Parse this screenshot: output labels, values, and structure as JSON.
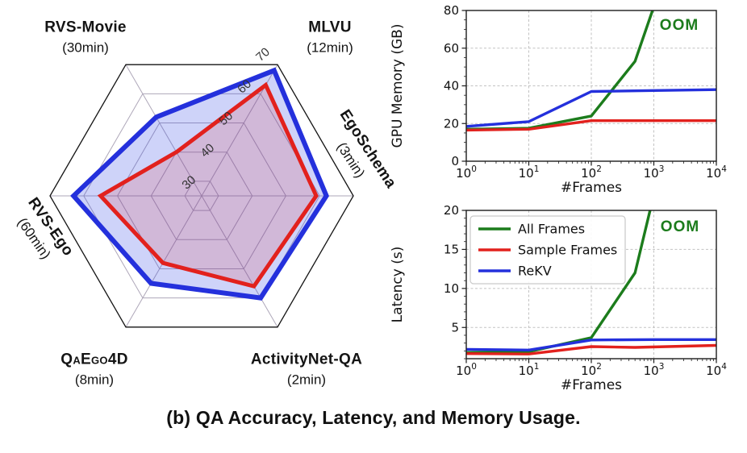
{
  "caption": "(b) QA Accuracy, Latency, and Memory Usage.",
  "colors": {
    "green": "#1c7c1c",
    "red": "#e2211d",
    "blue": "#2430dc",
    "blue_fill": "rgba(50,70,228,0.24)",
    "red_fill": "rgba(226,33,29,0.15)",
    "grid": "#c2c2c2",
    "spine": "#1c1c1c",
    "radar_grid": "#aea7b9",
    "radar_outline": "#141414"
  },
  "chart_data": [
    {
      "type": "radar",
      "categories": [
        "RVS-Movie",
        "MLVU",
        "EgoSchema",
        "ActivityNet-QA",
        "QaEgo4D",
        "RVS-Ego"
      ],
      "category_sublabels": [
        "(30min)",
        "(12min)",
        "(3min)",
        "(2min)",
        "(8min)",
        "(60min)"
      ],
      "axis_angles_deg": [
        120,
        60,
        0,
        -60,
        -120,
        180
      ],
      "rings": [
        30,
        40,
        50,
        60,
        70
      ],
      "scale_min": 25,
      "scale_max": 70,
      "series": [
        {
          "name": "ReKV",
          "color": "#2430dc",
          "fill": "rgba(50,70,228,0.24)",
          "values": [
            52,
            68,
            62,
            60,
            55,
            63
          ]
        },
        {
          "name": "Sample Frames",
          "color": "#e2211d",
          "fill": "rgba(226,33,29,0.15)",
          "values": [
            40,
            63,
            59,
            56,
            48,
            55
          ]
        }
      ]
    },
    {
      "type": "line",
      "xlabel": "#Frames",
      "ylabel": "GPU Memory (GB)",
      "xscale": "log",
      "xlim": [
        1,
        10000
      ],
      "ylim": [
        0,
        80
      ],
      "yticks": [
        0,
        20,
        40,
        60,
        80
      ],
      "xtick_labels": [
        "10^0",
        "10^1",
        "10^2",
        "10^3",
        "10^4"
      ],
      "annotation": {
        "text": "OOM",
        "color": "#1c7c1c"
      },
      "legend": false,
      "series": [
        {
          "name": "All Frames",
          "color": "#1c7c1c",
          "x": [
            1,
            10,
            100,
            500,
            1000
          ],
          "y": [
            17,
            17.5,
            24,
            53,
            82
          ]
        },
        {
          "name": "Sample Frames",
          "color": "#e2211d",
          "x": [
            1,
            10,
            100,
            1000,
            10000
          ],
          "y": [
            16.5,
            17,
            21.5,
            21.5,
            21.5
          ]
        },
        {
          "name": "ReKV",
          "color": "#2430dc",
          "x": [
            1,
            10,
            100,
            1000,
            10000
          ],
          "y": [
            18.5,
            21,
            37,
            37.5,
            38
          ]
        }
      ]
    },
    {
      "type": "line",
      "xlabel": "#Frames",
      "ylabel": "Latency (s)",
      "xscale": "log",
      "xlim": [
        1,
        10000
      ],
      "ylim": [
        1,
        20
      ],
      "yticks": [
        5,
        10,
        15,
        20
      ],
      "xtick_labels": [
        "10^0",
        "10^1",
        "10^2",
        "10^3",
        "10^4"
      ],
      "annotation": {
        "text": "OOM",
        "color": "#1c7c1c"
      },
      "legend": true,
      "legend_entries": [
        "All Frames",
        "Sample Frames",
        "ReKV"
      ],
      "series": [
        {
          "name": "All Frames",
          "color": "#1c7c1c",
          "x": [
            1,
            10,
            100,
            500,
            1000
          ],
          "y": [
            1.8,
            1.9,
            3.7,
            12,
            22
          ]
        },
        {
          "name": "Sample Frames",
          "color": "#e2211d",
          "x": [
            1,
            10,
            100,
            500,
            10000
          ],
          "y": [
            1.65,
            1.6,
            2.55,
            2.45,
            2.7
          ]
        },
        {
          "name": "ReKV",
          "color": "#2430dc",
          "x": [
            1,
            10,
            100,
            1000,
            10000
          ],
          "y": [
            2.2,
            2.1,
            3.4,
            3.45,
            3.45
          ]
        }
      ]
    }
  ]
}
